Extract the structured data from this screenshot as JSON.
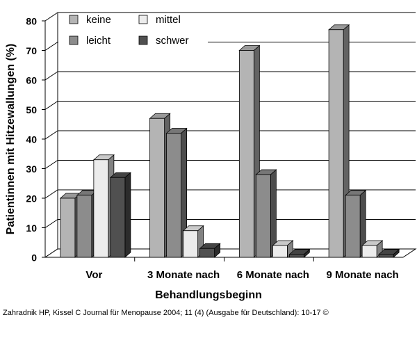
{
  "chart_data": {
    "type": "bar3d",
    "y_label": "Patientinnen mit Hitzewallungen (%)",
    "x_label": "Behandlungsbeginn",
    "source": "Zahradnik HP, Kissel C Journal für Menopause 2004; 11 (4) (Ausgabe für Deutschland): 10-17 ©",
    "categories": [
      "Vor",
      "3 Monate nach",
      "6 Monate nach",
      "9 Monate nach"
    ],
    "series": [
      {
        "name": "keine",
        "color": "#b4b4b4",
        "values": [
          20,
          47,
          70,
          77
        ]
      },
      {
        "name": "leicht",
        "color": "#8c8c8c",
        "values": [
          21,
          42,
          28,
          21
        ]
      },
      {
        "name": "mittel",
        "color": "#ececec",
        "values": [
          33,
          9,
          4,
          4
        ]
      },
      {
        "name": "schwer",
        "color": "#505050",
        "values": [
          27,
          3,
          1,
          1
        ]
      }
    ],
    "ylim": [
      0,
      80
    ],
    "yticks": [
      0,
      10,
      20,
      30,
      40,
      50,
      60,
      70,
      80
    ],
    "grid": true
  }
}
